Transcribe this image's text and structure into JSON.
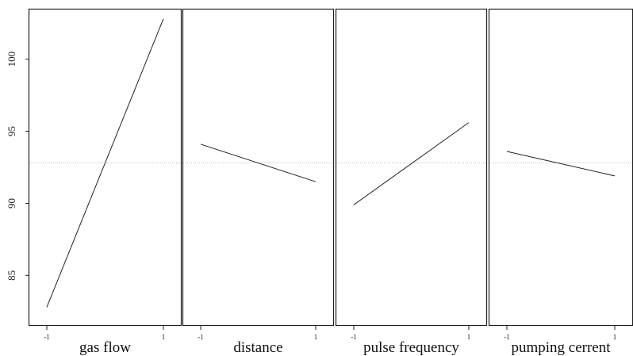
{
  "chart_data": {
    "type": "line",
    "ylim": [
      81.5,
      103.5
    ],
    "yticks": [
      85,
      90,
      95,
      100
    ],
    "ytick_labels": [
      "85",
      "90",
      "95",
      "100"
    ],
    "reference_line": 92.8,
    "panels": [
      {
        "xlabel": "gas flow",
        "x": [
          -1,
          1
        ],
        "y": [
          82.8,
          102.8
        ],
        "xtick_labels": [
          "-1",
          "1"
        ]
      },
      {
        "xlabel": "distance",
        "x": [
          -1,
          1
        ],
        "y": [
          94.1,
          91.5
        ],
        "xtick_labels": [
          "-1",
          "1"
        ]
      },
      {
        "xlabel": "pulse frequency",
        "x": [
          -1,
          1
        ],
        "y": [
          89.9,
          95.6
        ],
        "xtick_labels": [
          "-1",
          "1"
        ]
      },
      {
        "xlabel": "pumping cerrent",
        "x": [
          -1,
          1
        ],
        "y": [
          93.6,
          91.9
        ],
        "xtick_labels": [
          "-1",
          "1"
        ]
      }
    ],
    "colors": {
      "line": "#222222",
      "frame": "#222222",
      "reference": "#b8b8b8"
    }
  }
}
